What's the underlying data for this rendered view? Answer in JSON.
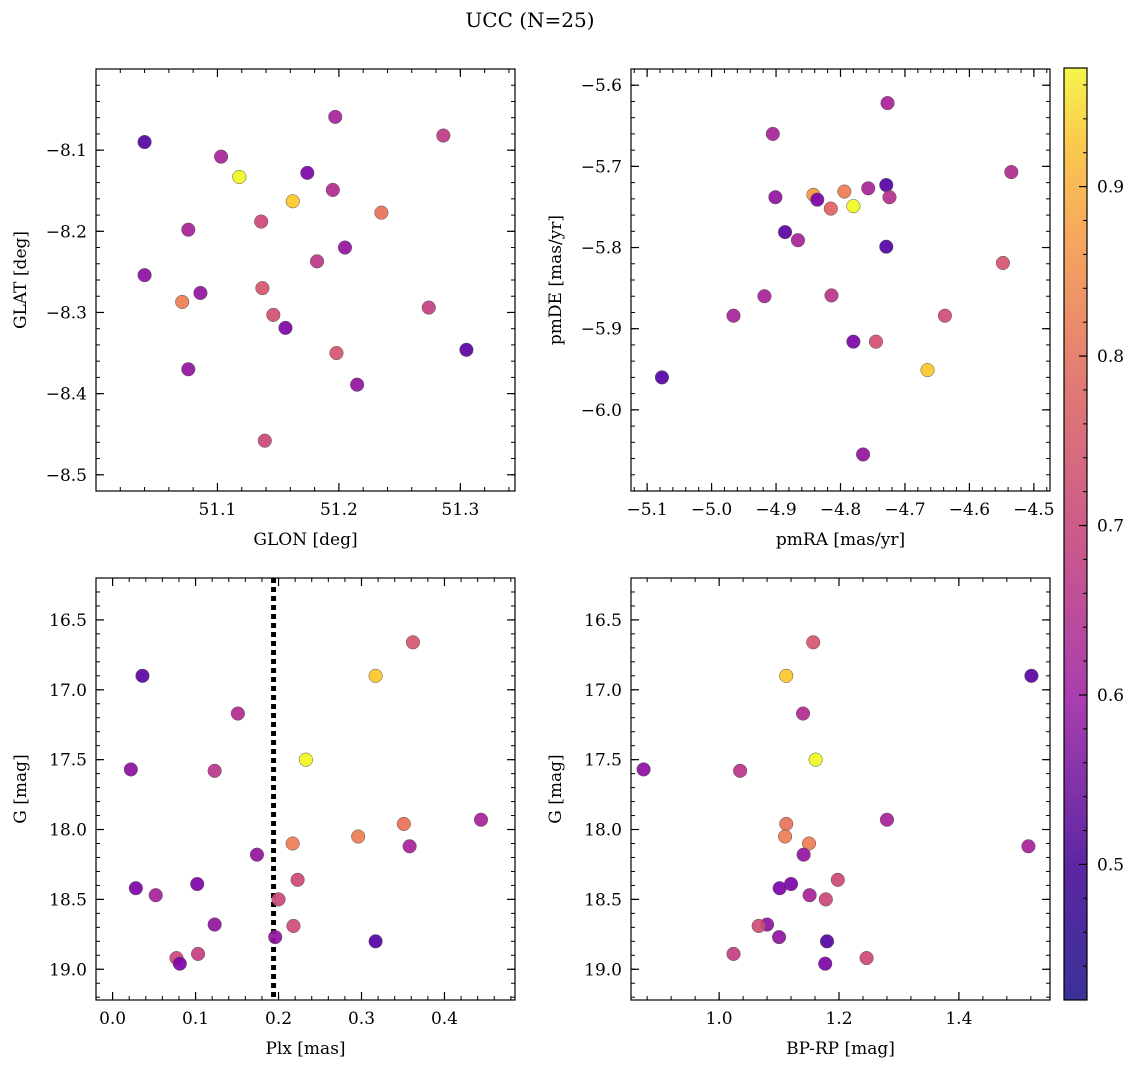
{
  "figure": {
    "title": "UCC (N=25)"
  },
  "colorbar": {
    "range": [
      0.42,
      0.97
    ],
    "ticks": [
      0.5,
      0.6,
      0.7,
      0.8,
      0.9
    ],
    "tick_labels": [
      "0.5",
      "0.6",
      "0.7",
      "0.8",
      "0.9"
    ],
    "colormap": "plasma"
  },
  "chart_data": [
    {
      "type": "scatter",
      "xlabel": "GLON [deg]",
      "ylabel": "GLAT [deg]",
      "xlim": [
        51.0,
        51.345
      ],
      "ylim": [
        -8.52,
        -8.0
      ],
      "yinvert": false,
      "xticks": [
        51.1,
        51.2,
        51.3
      ],
      "xtick_labels": [
        "51.1",
        "51.2",
        "51.3"
      ],
      "yticks": [
        -8.1,
        -8.2,
        -8.3,
        -8.4,
        -8.5
      ],
      "ytick_labels": [
        "−8.1",
        "−8.2",
        "−8.3",
        "−8.4",
        "−8.5"
      ],
      "points": [
        {
          "x": 51.04,
          "y": -8.09,
          "c": 0.44
        },
        {
          "x": 51.103,
          "y": -8.108,
          "c": 0.58
        },
        {
          "x": 51.118,
          "y": -8.133,
          "c": 0.97
        },
        {
          "x": 51.197,
          "y": -8.059,
          "c": 0.58
        },
        {
          "x": 51.174,
          "y": -8.128,
          "c": 0.5
        },
        {
          "x": 51.286,
          "y": -8.082,
          "c": 0.63
        },
        {
          "x": 51.162,
          "y": -8.163,
          "c": 0.9
        },
        {
          "x": 51.195,
          "y": -8.149,
          "c": 0.6
        },
        {
          "x": 51.235,
          "y": -8.177,
          "c": 0.75
        },
        {
          "x": 51.136,
          "y": -8.188,
          "c": 0.66
        },
        {
          "x": 51.076,
          "y": -8.198,
          "c": 0.58
        },
        {
          "x": 51.205,
          "y": -8.22,
          "c": 0.54
        },
        {
          "x": 51.182,
          "y": -8.237,
          "c": 0.62
        },
        {
          "x": 51.04,
          "y": -8.254,
          "c": 0.53
        },
        {
          "x": 51.137,
          "y": -8.27,
          "c": 0.69
        },
        {
          "x": 51.086,
          "y": -8.276,
          "c": 0.54
        },
        {
          "x": 51.071,
          "y": -8.287,
          "c": 0.77
        },
        {
          "x": 51.274,
          "y": -8.294,
          "c": 0.64
        },
        {
          "x": 51.146,
          "y": -8.303,
          "c": 0.68
        },
        {
          "x": 51.156,
          "y": -8.319,
          "c": 0.5
        },
        {
          "x": 51.305,
          "y": -8.346,
          "c": 0.45
        },
        {
          "x": 51.198,
          "y": -8.35,
          "c": 0.69
        },
        {
          "x": 51.076,
          "y": -8.37,
          "c": 0.54
        },
        {
          "x": 51.215,
          "y": -8.389,
          "c": 0.54
        },
        {
          "x": 51.139,
          "y": -8.458,
          "c": 0.66
        }
      ]
    },
    {
      "type": "scatter",
      "xlabel": "pmRA [mas/yr]",
      "ylabel": "pmDE [mas/yr]",
      "xlim": [
        -5.125,
        -4.475
      ],
      "ylim": [
        -6.1,
        -5.58
      ],
      "yinvert": false,
      "xticks": [
        -5.1,
        -5.0,
        -4.9,
        -4.8,
        -4.7,
        -4.6,
        -4.5
      ],
      "xtick_labels": [
        "−5.1",
        "−5.0",
        "−4.9",
        "−4.8",
        "−4.7",
        "−4.6",
        "−4.5"
      ],
      "yticks": [
        -5.6,
        -5.7,
        -5.8,
        -5.9,
        -6.0
      ],
      "ytick_labels": [
        "−5.6",
        "−5.7",
        "−5.8",
        "−5.9",
        "−6.0"
      ],
      "points": [
        {
          "x": -4.727,
          "y": -5.622,
          "c": 0.58
        },
        {
          "x": -4.905,
          "y": -5.66,
          "c": 0.58
        },
        {
          "x": -4.535,
          "y": -5.707,
          "c": 0.6
        },
        {
          "x": -4.729,
          "y": -5.723,
          "c": 0.44
        },
        {
          "x": -4.757,
          "y": -5.727,
          "c": 0.58
        },
        {
          "x": -4.794,
          "y": -5.731,
          "c": 0.77
        },
        {
          "x": -4.842,
          "y": -5.735,
          "c": 0.82
        },
        {
          "x": -4.901,
          "y": -5.738,
          "c": 0.54
        },
        {
          "x": -4.724,
          "y": -5.738,
          "c": 0.61
        },
        {
          "x": -4.836,
          "y": -5.741,
          "c": 0.5
        },
        {
          "x": -4.78,
          "y": -5.749,
          "c": 0.97
        },
        {
          "x": -4.815,
          "y": -5.752,
          "c": 0.72
        },
        {
          "x": -4.886,
          "y": -5.781,
          "c": 0.45
        },
        {
          "x": -4.866,
          "y": -5.791,
          "c": 0.58
        },
        {
          "x": -4.729,
          "y": -5.799,
          "c": 0.44
        },
        {
          "x": -4.548,
          "y": -5.819,
          "c": 0.69
        },
        {
          "x": -4.918,
          "y": -5.86,
          "c": 0.58
        },
        {
          "x": -4.814,
          "y": -5.859,
          "c": 0.62
        },
        {
          "x": -4.966,
          "y": -5.884,
          "c": 0.58
        },
        {
          "x": -4.638,
          "y": -5.884,
          "c": 0.67
        },
        {
          "x": -4.78,
          "y": -5.916,
          "c": 0.5
        },
        {
          "x": -4.745,
          "y": -5.916,
          "c": 0.68
        },
        {
          "x": -4.665,
          "y": -5.951,
          "c": 0.9
        },
        {
          "x": -5.077,
          "y": -5.96,
          "c": 0.44
        },
        {
          "x": -4.765,
          "y": -6.055,
          "c": 0.54
        }
      ]
    },
    {
      "type": "scatter",
      "xlabel": "Plx [mas]",
      "ylabel": "G [mag]",
      "xlim": [
        -0.02,
        0.485
      ],
      "ylim": [
        16.2,
        19.22
      ],
      "yinvert": true,
      "xticks": [
        0.0,
        0.1,
        0.2,
        0.3,
        0.4
      ],
      "xtick_labels": [
        "0.0",
        "0.1",
        "0.2",
        "0.3",
        "0.4"
      ],
      "yticks": [
        16.5,
        17.0,
        17.5,
        18.0,
        18.5,
        19.0
      ],
      "ytick_labels": [
        "16.5",
        "17.0",
        "17.5",
        "18.0",
        "18.5",
        "19.0"
      ],
      "vline": 0.194,
      "points": [
        {
          "x": 0.362,
          "y": 16.66,
          "c": 0.69
        },
        {
          "x": 0.036,
          "y": 16.9,
          "c": 0.45
        },
        {
          "x": 0.317,
          "y": 16.9,
          "c": 0.9
        },
        {
          "x": 0.151,
          "y": 17.17,
          "c": 0.6
        },
        {
          "x": 0.233,
          "y": 17.5,
          "c": 0.97
        },
        {
          "x": 0.022,
          "y": 17.57,
          "c": 0.53
        },
        {
          "x": 0.123,
          "y": 17.58,
          "c": 0.62
        },
        {
          "x": 0.444,
          "y": 17.93,
          "c": 0.58
        },
        {
          "x": 0.351,
          "y": 17.96,
          "c": 0.75
        },
        {
          "x": 0.296,
          "y": 18.05,
          "c": 0.77
        },
        {
          "x": 0.217,
          "y": 18.1,
          "c": 0.77
        },
        {
          "x": 0.358,
          "y": 18.12,
          "c": 0.58
        },
        {
          "x": 0.174,
          "y": 18.18,
          "c": 0.54
        },
        {
          "x": 0.223,
          "y": 18.36,
          "c": 0.66
        },
        {
          "x": 0.102,
          "y": 18.39,
          "c": 0.5
        },
        {
          "x": 0.028,
          "y": 18.42,
          "c": 0.5
        },
        {
          "x": 0.052,
          "y": 18.47,
          "c": 0.58
        },
        {
          "x": 0.2,
          "y": 18.5,
          "c": 0.66
        },
        {
          "x": 0.123,
          "y": 18.68,
          "c": 0.54
        },
        {
          "x": 0.218,
          "y": 18.69,
          "c": 0.67
        },
        {
          "x": 0.196,
          "y": 18.77,
          "c": 0.54
        },
        {
          "x": 0.317,
          "y": 18.8,
          "c": 0.44
        },
        {
          "x": 0.103,
          "y": 18.89,
          "c": 0.64
        },
        {
          "x": 0.077,
          "y": 18.92,
          "c": 0.66
        },
        {
          "x": 0.081,
          "y": 18.96,
          "c": 0.5
        }
      ]
    },
    {
      "type": "scatter",
      "xlabel": "BP-RP [mag]",
      "ylabel": "G [mag]",
      "xlim": [
        0.853,
        1.552
      ],
      "ylim": [
        16.2,
        19.22
      ],
      "yinvert": true,
      "xticks": [
        1.0,
        1.2,
        1.4
      ],
      "xtick_labels": [
        "1.0",
        "1.2",
        "1.4"
      ],
      "yticks": [
        16.5,
        17.0,
        17.5,
        18.0,
        18.5,
        19.0
      ],
      "ytick_labels": [
        "16.5",
        "17.0",
        "17.5",
        "18.0",
        "18.5",
        "19.0"
      ],
      "points": [
        {
          "x": 1.157,
          "y": 16.66,
          "c": 0.69
        },
        {
          "x": 1.112,
          "y": 16.9,
          "c": 0.9
        },
        {
          "x": 1.521,
          "y": 16.9,
          "c": 0.45
        },
        {
          "x": 1.14,
          "y": 17.17,
          "c": 0.6
        },
        {
          "x": 1.161,
          "y": 17.5,
          "c": 0.97
        },
        {
          "x": 0.874,
          "y": 17.57,
          "c": 0.53
        },
        {
          "x": 1.035,
          "y": 17.58,
          "c": 0.62
        },
        {
          "x": 1.28,
          "y": 17.93,
          "c": 0.58
        },
        {
          "x": 1.112,
          "y": 17.96,
          "c": 0.75
        },
        {
          "x": 1.11,
          "y": 18.05,
          "c": 0.77
        },
        {
          "x": 1.15,
          "y": 18.1,
          "c": 0.77
        },
        {
          "x": 1.516,
          "y": 18.12,
          "c": 0.58
        },
        {
          "x": 1.141,
          "y": 18.18,
          "c": 0.54
        },
        {
          "x": 1.198,
          "y": 18.36,
          "c": 0.66
        },
        {
          "x": 1.12,
          "y": 18.39,
          "c": 0.5
        },
        {
          "x": 1.101,
          "y": 18.42,
          "c": 0.5
        },
        {
          "x": 1.151,
          "y": 18.47,
          "c": 0.58
        },
        {
          "x": 1.178,
          "y": 18.5,
          "c": 0.66
        },
        {
          "x": 1.08,
          "y": 18.68,
          "c": 0.54
        },
        {
          "x": 1.066,
          "y": 18.69,
          "c": 0.67
        },
        {
          "x": 1.1,
          "y": 18.77,
          "c": 0.54
        },
        {
          "x": 1.18,
          "y": 18.8,
          "c": 0.44
        },
        {
          "x": 1.024,
          "y": 18.89,
          "c": 0.64
        },
        {
          "x": 1.246,
          "y": 18.92,
          "c": 0.66
        },
        {
          "x": 1.177,
          "y": 18.96,
          "c": 0.5
        }
      ]
    }
  ]
}
